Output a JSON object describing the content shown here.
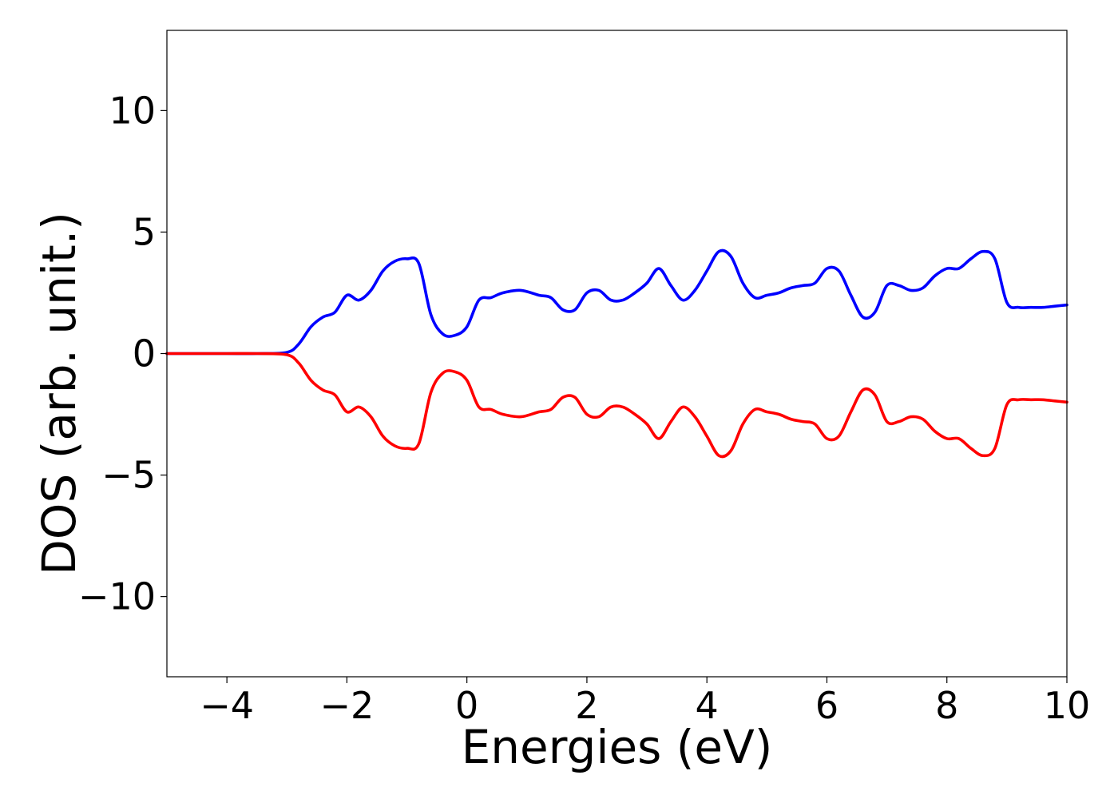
{
  "chart_data": {
    "type": "line",
    "xlabel": "Energies (eV)",
    "ylabel": "DOS (arb. unit.)",
    "xlim": [
      -5,
      10
    ],
    "ylim": [
      -13.3,
      13.3
    ],
    "x_ticks": [
      {
        "value": -4,
        "label": "−4"
      },
      {
        "value": -2,
        "label": "−2"
      },
      {
        "value": 0,
        "label": "0"
      },
      {
        "value": 2,
        "label": "2"
      },
      {
        "value": 4,
        "label": "4"
      },
      {
        "value": 6,
        "label": "6"
      },
      {
        "value": 8,
        "label": "8"
      },
      {
        "value": 10,
        "label": "10"
      }
    ],
    "y_ticks": [
      {
        "value": -10,
        "label": "−10"
      },
      {
        "value": -5,
        "label": "−5"
      },
      {
        "value": 0,
        "label": "0"
      },
      {
        "value": 5,
        "label": "5"
      },
      {
        "value": 10,
        "label": "10"
      }
    ],
    "grid": false,
    "legend": "none",
    "x": [
      -5.0,
      -4.5,
      -4.0,
      -3.5,
      -3.0,
      -2.8,
      -2.6,
      -2.4,
      -2.2,
      -2.0,
      -1.8,
      -1.6,
      -1.4,
      -1.2,
      -1.0,
      -0.8,
      -0.6,
      -0.4,
      -0.2,
      0.0,
      0.2,
      0.4,
      0.6,
      0.9,
      1.2,
      1.4,
      1.6,
      1.8,
      2.0,
      2.2,
      2.4,
      2.6,
      2.8,
      3.0,
      3.2,
      3.4,
      3.6,
      3.8,
      4.0,
      4.2,
      4.4,
      4.6,
      4.8,
      5.0,
      5.2,
      5.4,
      5.6,
      5.8,
      6.0,
      6.2,
      6.4,
      6.6,
      6.8,
      7.0,
      7.2,
      7.4,
      7.6,
      7.8,
      8.0,
      8.2,
      8.4,
      8.6,
      8.8,
      9.0,
      9.2,
      9.4,
      9.6,
      9.8,
      10.0
    ],
    "series": [
      {
        "color": "#0000ff",
        "values": [
          0.0,
          0.0,
          0.0,
          0.0,
          0.05,
          0.4,
          1.1,
          1.5,
          1.7,
          2.4,
          2.2,
          2.6,
          3.4,
          3.8,
          3.9,
          3.7,
          1.6,
          0.8,
          0.75,
          1.1,
          2.2,
          2.3,
          2.5,
          2.6,
          2.4,
          2.3,
          1.8,
          1.8,
          2.5,
          2.6,
          2.2,
          2.2,
          2.5,
          2.9,
          3.5,
          2.8,
          2.2,
          2.6,
          3.4,
          4.2,
          4.0,
          2.9,
          2.3,
          2.4,
          2.5,
          2.7,
          2.8,
          2.9,
          3.5,
          3.4,
          2.4,
          1.5,
          1.7,
          2.8,
          2.8,
          2.6,
          2.7,
          3.2,
          3.5,
          3.5,
          3.9,
          4.2,
          3.9,
          2.1,
          1.9,
          1.9,
          1.9,
          1.95,
          2.0
        ]
      },
      {
        "color": "#ff0000",
        "values": [
          0.0,
          0.0,
          0.0,
          0.0,
          -0.05,
          -0.4,
          -1.1,
          -1.5,
          -1.7,
          -2.4,
          -2.2,
          -2.6,
          -3.4,
          -3.8,
          -3.9,
          -3.7,
          -1.6,
          -0.8,
          -0.75,
          -1.1,
          -2.2,
          -2.3,
          -2.5,
          -2.6,
          -2.4,
          -2.3,
          -1.8,
          -1.8,
          -2.5,
          -2.6,
          -2.2,
          -2.2,
          -2.5,
          -2.9,
          -3.5,
          -2.8,
          -2.2,
          -2.6,
          -3.4,
          -4.2,
          -4.0,
          -2.9,
          -2.3,
          -2.4,
          -2.5,
          -2.7,
          -2.8,
          -2.9,
          -3.5,
          -3.4,
          -2.4,
          -1.5,
          -1.7,
          -2.8,
          -2.8,
          -2.6,
          -2.7,
          -3.2,
          -3.5,
          -3.5,
          -3.9,
          -4.2,
          -3.9,
          -2.1,
          -1.9,
          -1.9,
          -1.9,
          -1.95,
          -2.0
        ]
      }
    ]
  }
}
